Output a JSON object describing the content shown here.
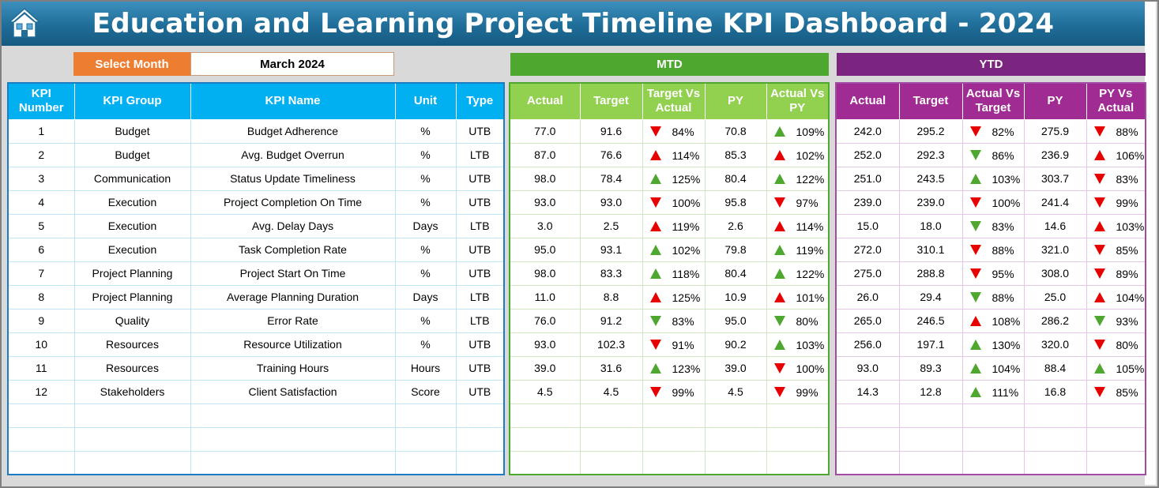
{
  "title": "Education and Learning Project Timeline KPI Dashboard - 2024",
  "select_month": {
    "label": "Select Month",
    "value": "March 2024"
  },
  "sections": {
    "mtd": "MTD",
    "ytd": "YTD"
  },
  "colors": {
    "up": "#4ea72e",
    "down": "#e60000",
    "accent": "#ed7d31",
    "title_blue": "#1f6d98"
  },
  "icons": {
    "home": "home-icon",
    "up": "triangle-up-icon",
    "down": "triangle-down-icon"
  },
  "kpi_headers": [
    "KPI Number",
    "KPI Group",
    "KPI Name",
    "Unit",
    "Type"
  ],
  "mtd_headers": [
    "Actual",
    "Target",
    "Target Vs Actual",
    "PY",
    "Actual Vs PY"
  ],
  "ytd_headers": [
    "Actual",
    "Target",
    "Actual Vs Target",
    "PY",
    "PY Vs Actual"
  ],
  "rows": [
    {
      "num": "1",
      "group": "Budget",
      "name": "Budget Adherence",
      "unit": "%",
      "type": "UTB",
      "mtd": {
        "actual": "77.0",
        "target": "91.6",
        "tva": "84%",
        "tva_dir": "down",
        "py": "70.8",
        "avp": "109%",
        "avp_dir": "up"
      },
      "ytd": {
        "actual": "242.0",
        "target": "295.2",
        "avt": "82%",
        "avt_dir": "down",
        "py": "275.9",
        "pva": "88%",
        "pva_dir": "down"
      }
    },
    {
      "num": "2",
      "group": "Budget",
      "name": "Avg. Budget Overrun",
      "unit": "%",
      "type": "LTB",
      "mtd": {
        "actual": "87.0",
        "target": "76.6",
        "tva": "114%",
        "tva_dir": "up_red",
        "py": "85.3",
        "avp": "102%",
        "avp_dir": "up_red"
      },
      "ytd": {
        "actual": "252.0",
        "target": "292.3",
        "avt": "86%",
        "avt_dir": "down_green",
        "py": "236.9",
        "pva": "106%",
        "pva_dir": "up_red"
      }
    },
    {
      "num": "3",
      "group": "Communication",
      "name": "Status Update Timeliness",
      "unit": "%",
      "type": "UTB",
      "mtd": {
        "actual": "98.0",
        "target": "78.4",
        "tva": "125%",
        "tva_dir": "up",
        "py": "80.4",
        "avp": "122%",
        "avp_dir": "up"
      },
      "ytd": {
        "actual": "251.0",
        "target": "243.5",
        "avt": "103%",
        "avt_dir": "up",
        "py": "303.7",
        "pva": "83%",
        "pva_dir": "down"
      }
    },
    {
      "num": "4",
      "group": "Execution",
      "name": "Project Completion On Time",
      "unit": "%",
      "type": "UTB",
      "mtd": {
        "actual": "93.0",
        "target": "93.0",
        "tva": "100%",
        "tva_dir": "down",
        "py": "95.8",
        "avp": "97%",
        "avp_dir": "down"
      },
      "ytd": {
        "actual": "239.0",
        "target": "239.0",
        "avt": "100%",
        "avt_dir": "down",
        "py": "241.4",
        "pva": "99%",
        "pva_dir": "down"
      }
    },
    {
      "num": "5",
      "group": "Execution",
      "name": "Avg. Delay Days",
      "unit": "Days",
      "type": "LTB",
      "mtd": {
        "actual": "3.0",
        "target": "2.5",
        "tva": "119%",
        "tva_dir": "up_red",
        "py": "2.6",
        "avp": "114%",
        "avp_dir": "up_red"
      },
      "ytd": {
        "actual": "15.0",
        "target": "18.0",
        "avt": "83%",
        "avt_dir": "down_green",
        "py": "14.6",
        "pva": "103%",
        "pva_dir": "up_red"
      }
    },
    {
      "num": "6",
      "group": "Execution",
      "name": "Task Completion Rate",
      "unit": "%",
      "type": "UTB",
      "mtd": {
        "actual": "95.0",
        "target": "93.1",
        "tva": "102%",
        "tva_dir": "up",
        "py": "79.8",
        "avp": "119%",
        "avp_dir": "up"
      },
      "ytd": {
        "actual": "272.0",
        "target": "310.1",
        "avt": "88%",
        "avt_dir": "down",
        "py": "321.0",
        "pva": "85%",
        "pva_dir": "down"
      }
    },
    {
      "num": "7",
      "group": "Project Planning",
      "name": "Project Start On Time",
      "unit": "%",
      "type": "UTB",
      "mtd": {
        "actual": "98.0",
        "target": "83.3",
        "tva": "118%",
        "tva_dir": "up",
        "py": "80.4",
        "avp": "122%",
        "avp_dir": "up"
      },
      "ytd": {
        "actual": "275.0",
        "target": "288.8",
        "avt": "95%",
        "avt_dir": "down",
        "py": "308.0",
        "pva": "89%",
        "pva_dir": "down"
      }
    },
    {
      "num": "8",
      "group": "Project Planning",
      "name": "Average Planning Duration",
      "unit": "Days",
      "type": "LTB",
      "mtd": {
        "actual": "11.0",
        "target": "8.8",
        "tva": "125%",
        "tva_dir": "up_red",
        "py": "10.9",
        "avp": "101%",
        "avp_dir": "up_red"
      },
      "ytd": {
        "actual": "26.0",
        "target": "29.4",
        "avt": "88%",
        "avt_dir": "down_green",
        "py": "25.0",
        "pva": "104%",
        "pva_dir": "up_red"
      }
    },
    {
      "num": "9",
      "group": "Quality",
      "name": "Error Rate",
      "unit": "%",
      "type": "LTB",
      "mtd": {
        "actual": "76.0",
        "target": "91.2",
        "tva": "83%",
        "tva_dir": "down_green",
        "py": "95.0",
        "avp": "80%",
        "avp_dir": "down_green"
      },
      "ytd": {
        "actual": "265.0",
        "target": "246.5",
        "avt": "108%",
        "avt_dir": "up_red",
        "py": "286.2",
        "pva": "93%",
        "pva_dir": "down_green"
      }
    },
    {
      "num": "10",
      "group": "Resources",
      "name": "Resource Utilization",
      "unit": "%",
      "type": "UTB",
      "mtd": {
        "actual": "93.0",
        "target": "102.3",
        "tva": "91%",
        "tva_dir": "down",
        "py": "90.2",
        "avp": "103%",
        "avp_dir": "up"
      },
      "ytd": {
        "actual": "256.0",
        "target": "197.1",
        "avt": "130%",
        "avt_dir": "up",
        "py": "320.0",
        "pva": "80%",
        "pva_dir": "down"
      }
    },
    {
      "num": "11",
      "group": "Resources",
      "name": "Training Hours",
      "unit": "Hours",
      "type": "UTB",
      "mtd": {
        "actual": "39.0",
        "target": "31.6",
        "tva": "123%",
        "tva_dir": "up",
        "py": "39.0",
        "avp": "100%",
        "avp_dir": "down"
      },
      "ytd": {
        "actual": "93.0",
        "target": "89.3",
        "avt": "104%",
        "avt_dir": "up",
        "py": "88.4",
        "pva": "105%",
        "pva_dir": "up"
      }
    },
    {
      "num": "12",
      "group": "Stakeholders",
      "name": "Client Satisfaction",
      "unit": "Score",
      "type": "UTB",
      "mtd": {
        "actual": "4.5",
        "target": "4.5",
        "tva": "99%",
        "tva_dir": "down",
        "py": "4.5",
        "avp": "99%",
        "avp_dir": "down"
      },
      "ytd": {
        "actual": "14.3",
        "target": "12.8",
        "avt": "111%",
        "avt_dir": "up",
        "py": "16.8",
        "pva": "85%",
        "pva_dir": "down"
      }
    }
  ]
}
